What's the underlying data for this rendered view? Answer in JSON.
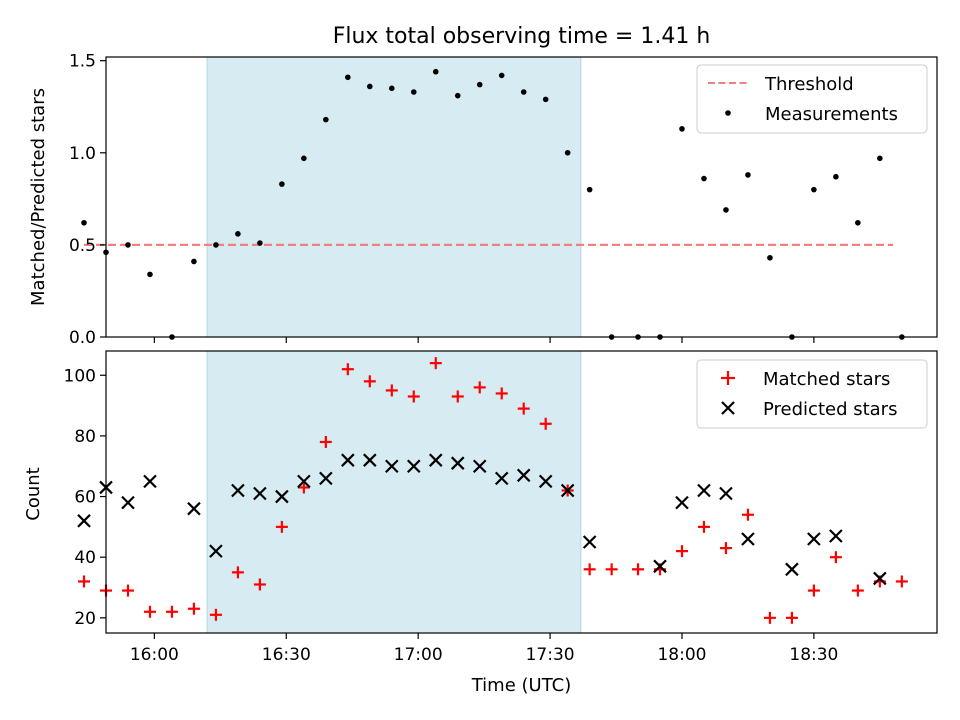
{
  "colors": {
    "threshold": "#f08080",
    "shade": "#add8e6",
    "measurement": "#000000",
    "matched": "#ff0000",
    "predicted": "#000000"
  },
  "chart_data": [
    {
      "type": "scatter",
      "title": "Flux total observing time = 1.41 h",
      "xlabel": "",
      "ylabel": "Matched/Predicted stars",
      "xlim": [
        "15:49",
        "18:58"
      ],
      "ylim": [
        0,
        1.52
      ],
      "yticks": [
        "0.0",
        "0.5",
        "1.0",
        "1.5"
      ],
      "shaded_interval": [
        "16:12",
        "17:37"
      ],
      "legend_position": "top-right",
      "threshold": {
        "name": "Threshold",
        "value": 0.5,
        "x_range": [
          "15:44",
          "18:48"
        ]
      },
      "series": [
        {
          "name": "Measurements",
          "points": [
            [
              "15:44",
              0.62
            ],
            [
              "15:49",
              0.46
            ],
            [
              "15:54",
              0.5
            ],
            [
              "15:59",
              0.34
            ],
            [
              "16:04",
              0.0
            ],
            [
              "16:09",
              0.41
            ],
            [
              "16:14",
              0.5
            ],
            [
              "16:19",
              0.56
            ],
            [
              "16:24",
              0.51
            ],
            [
              "16:29",
              0.83
            ],
            [
              "16:34",
              0.97
            ],
            [
              "16:39",
              1.18
            ],
            [
              "16:44",
              1.41
            ],
            [
              "16:49",
              1.36
            ],
            [
              "16:54",
              1.35
            ],
            [
              "16:59",
              1.33
            ],
            [
              "17:04",
              1.44
            ],
            [
              "17:09",
              1.31
            ],
            [
              "17:14",
              1.37
            ],
            [
              "17:19",
              1.42
            ],
            [
              "17:24",
              1.33
            ],
            [
              "17:29",
              1.29
            ],
            [
              "17:34",
              1.0
            ],
            [
              "17:39",
              0.8
            ],
            [
              "17:44",
              0.0
            ],
            [
              "17:50",
              0.0
            ],
            [
              "17:55",
              0.0
            ],
            [
              "18:00",
              1.13
            ],
            [
              "18:05",
              0.86
            ],
            [
              "18:10",
              0.69
            ],
            [
              "18:15",
              0.88
            ],
            [
              "18:20",
              0.43
            ],
            [
              "18:25",
              0.0
            ],
            [
              "18:30",
              0.8
            ],
            [
              "18:35",
              0.87
            ],
            [
              "18:40",
              0.62
            ],
            [
              "18:45",
              0.97
            ],
            [
              "18:50",
              0.0
            ]
          ]
        }
      ]
    },
    {
      "type": "scatter",
      "xlabel": "Time (UTC)",
      "ylabel": "Count",
      "xlim": [
        "15:49",
        "18:58"
      ],
      "ylim": [
        15,
        108
      ],
      "xticks": [
        "16:00",
        "16:30",
        "17:00",
        "17:30",
        "18:00",
        "18:30"
      ],
      "yticks": [
        "20",
        "40",
        "60",
        "80",
        "100"
      ],
      "shaded_interval": [
        "16:12",
        "17:37"
      ],
      "legend_position": "top-right",
      "series": [
        {
          "name": "Matched stars",
          "points": [
            [
              "15:44",
              32
            ],
            [
              "15:49",
              29
            ],
            [
              "15:54",
              29
            ],
            [
              "15:59",
              22
            ],
            [
              "16:04",
              22
            ],
            [
              "16:09",
              23
            ],
            [
              "16:14",
              21
            ],
            [
              "16:19",
              35
            ],
            [
              "16:24",
              31
            ],
            [
              "16:29",
              50
            ],
            [
              "16:34",
              63
            ],
            [
              "16:39",
              78
            ],
            [
              "16:44",
              102
            ],
            [
              "16:49",
              98
            ],
            [
              "16:54",
              95
            ],
            [
              "16:59",
              93
            ],
            [
              "17:04",
              104
            ],
            [
              "17:09",
              93
            ],
            [
              "17:14",
              96
            ],
            [
              "17:19",
              94
            ],
            [
              "17:24",
              89
            ],
            [
              "17:29",
              84
            ],
            [
              "17:34",
              62
            ],
            [
              "17:39",
              36
            ],
            [
              "17:44",
              36
            ],
            [
              "17:50",
              36
            ],
            [
              "17:55",
              36
            ],
            [
              "18:00",
              42
            ],
            [
              "18:05",
              50
            ],
            [
              "18:10",
              43
            ],
            [
              "18:15",
              54
            ],
            [
              "18:20",
              20
            ],
            [
              "18:25",
              20
            ],
            [
              "18:30",
              29
            ],
            [
              "18:35",
              40
            ],
            [
              "18:40",
              29
            ],
            [
              "18:45",
              32
            ],
            [
              "18:50",
              32
            ]
          ]
        },
        {
          "name": "Predicted stars",
          "points": [
            [
              "15:44",
              52
            ],
            [
              "15:49",
              63
            ],
            [
              "15:54",
              58
            ],
            [
              "15:59",
              65
            ],
            [
              "16:09",
              56
            ],
            [
              "16:14",
              42
            ],
            [
              "16:19",
              62
            ],
            [
              "16:24",
              61
            ],
            [
              "16:29",
              60
            ],
            [
              "16:34",
              65
            ],
            [
              "16:39",
              66
            ],
            [
              "16:44",
              72
            ],
            [
              "16:49",
              72
            ],
            [
              "16:54",
              70
            ],
            [
              "16:59",
              70
            ],
            [
              "17:04",
              72
            ],
            [
              "17:09",
              71
            ],
            [
              "17:14",
              70
            ],
            [
              "17:19",
              66
            ],
            [
              "17:24",
              67
            ],
            [
              "17:29",
              65
            ],
            [
              "17:34",
              62
            ],
            [
              "17:39",
              45
            ],
            [
              "17:55",
              37
            ],
            [
              "18:00",
              58
            ],
            [
              "18:05",
              62
            ],
            [
              "18:10",
              61
            ],
            [
              "18:15",
              46
            ],
            [
              "18:25",
              36
            ],
            [
              "18:30",
              46
            ],
            [
              "18:35",
              47
            ],
            [
              "18:45",
              33
            ]
          ]
        }
      ]
    }
  ]
}
